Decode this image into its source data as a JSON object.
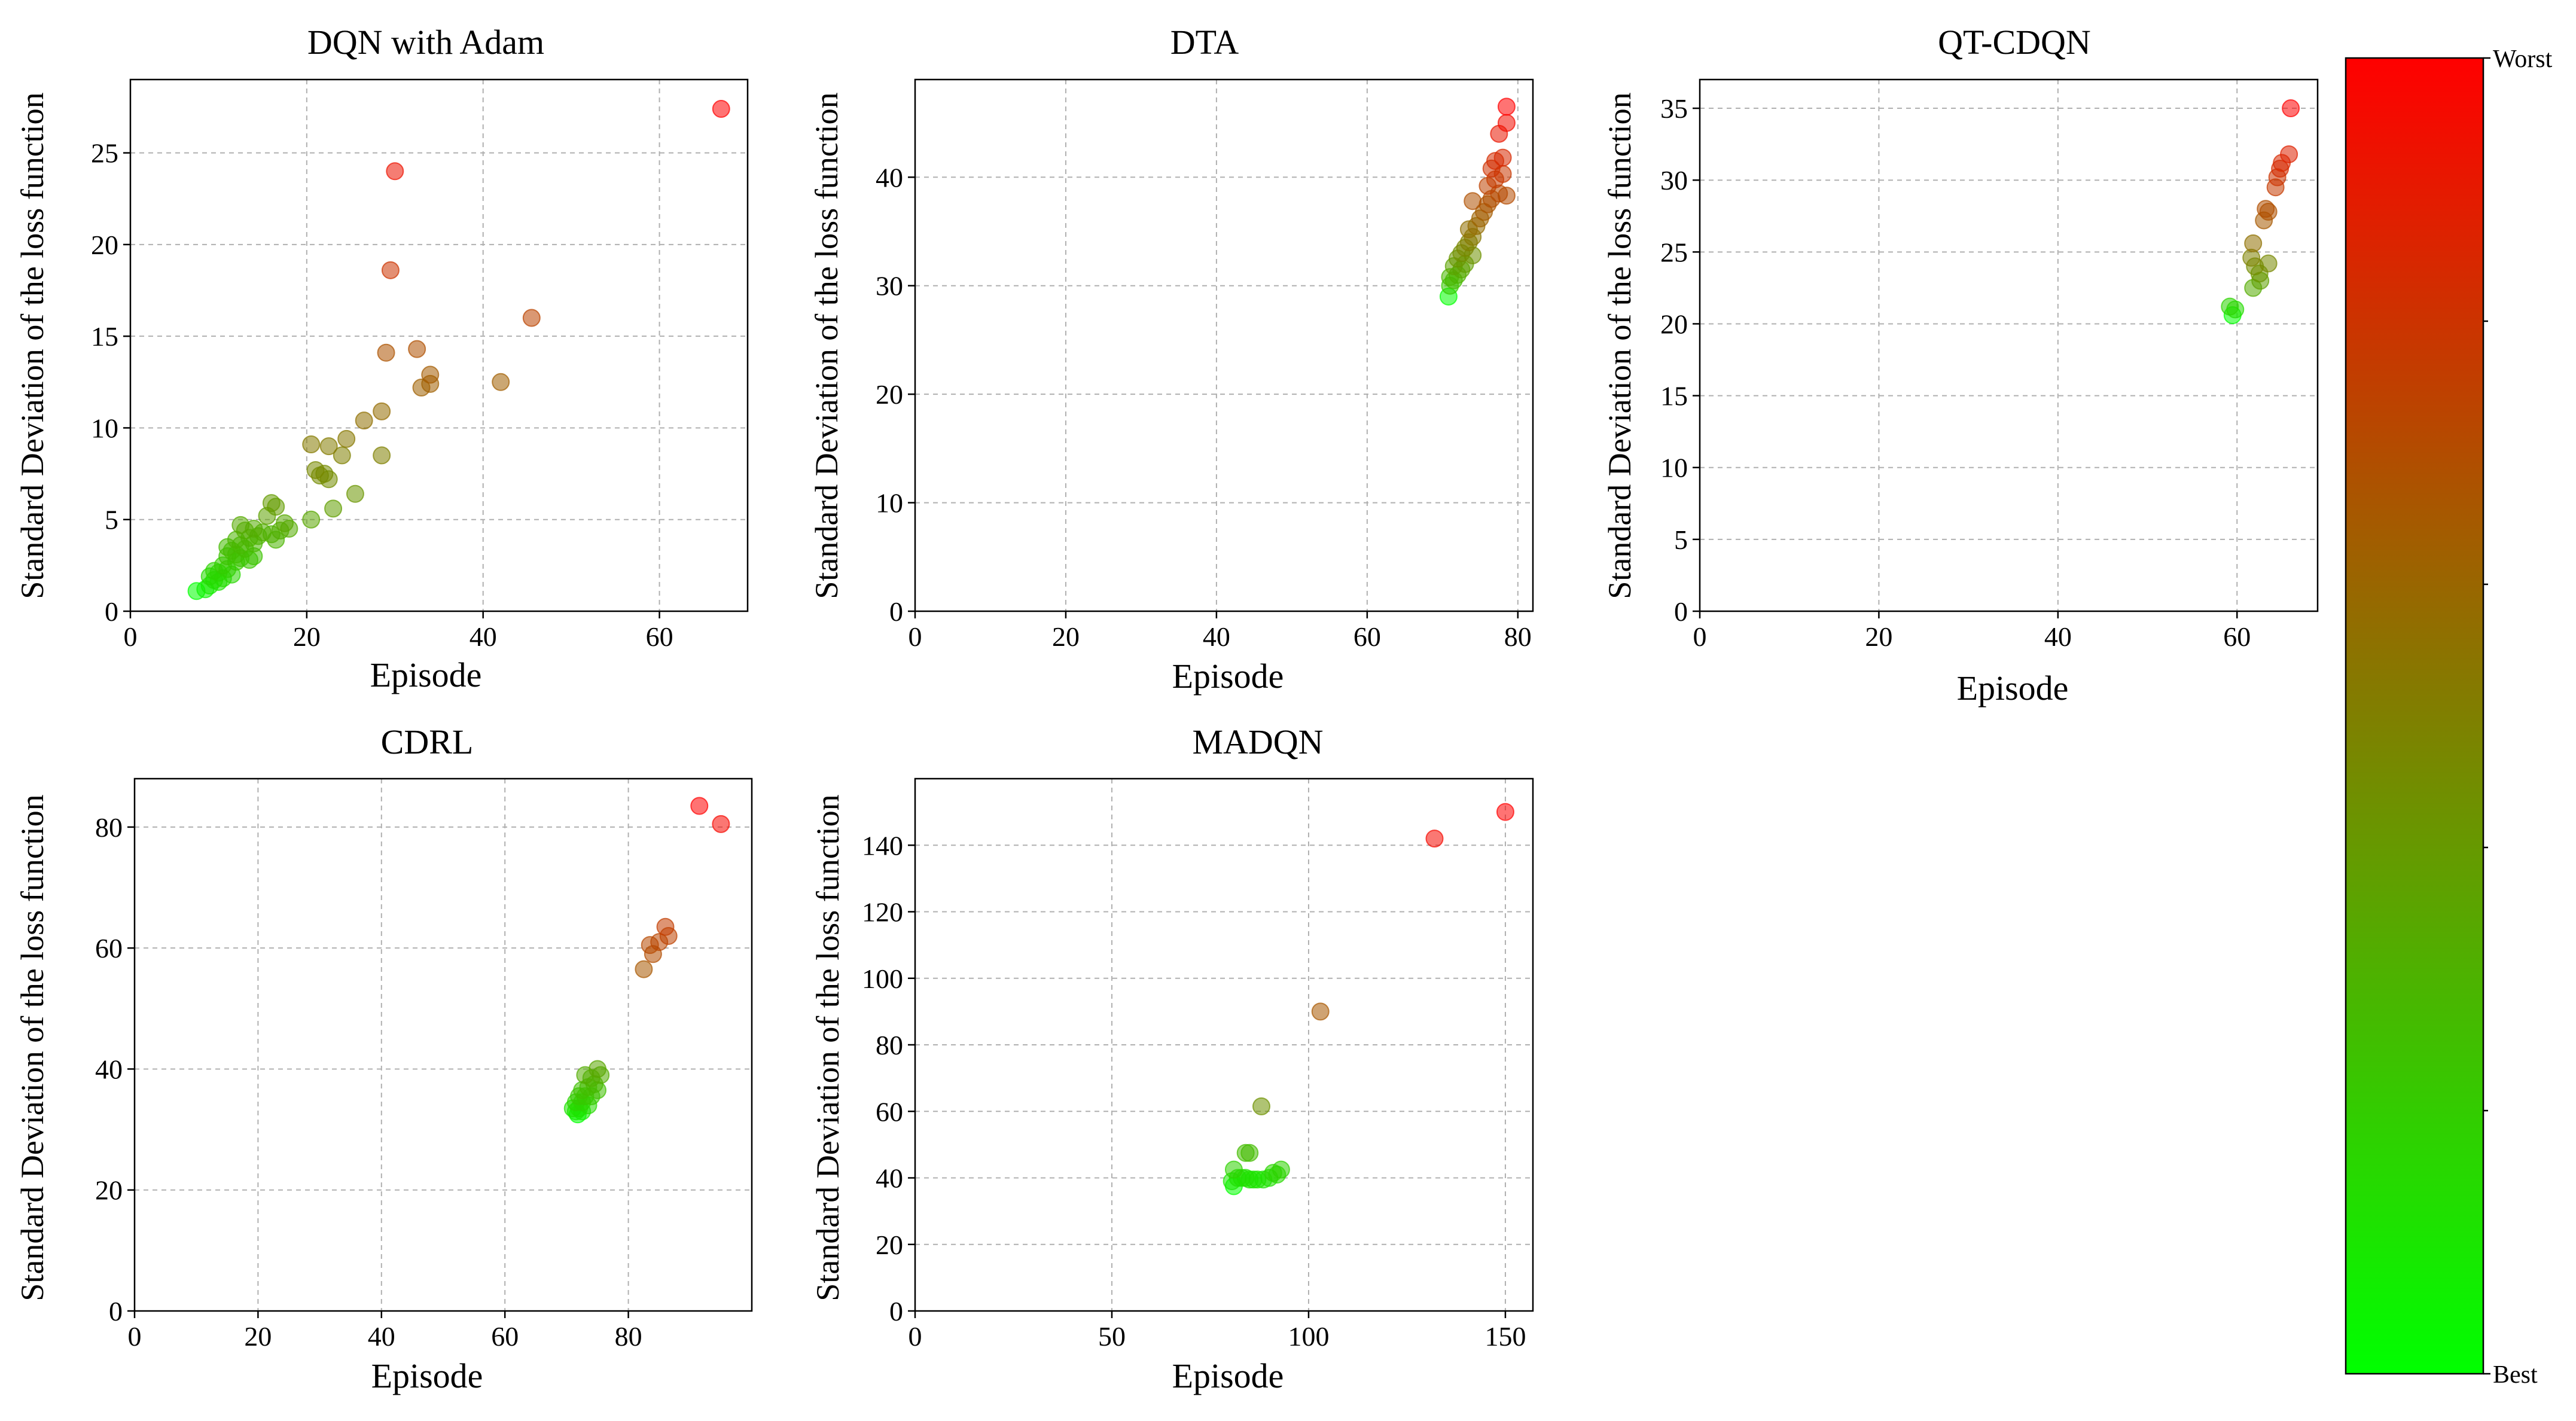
{
  "chart_data": [
    {
      "type": "scatter",
      "title": "DQN with Adam",
      "xlabel": "Episode",
      "ylabel": "Standard Deviation of the loss function",
      "xlim": [
        0,
        70
      ],
      "ylim": [
        0,
        29
      ],
      "xticks": [
        0,
        20,
        40,
        60
      ],
      "yticks": [
        0,
        5,
        10,
        15,
        20,
        25
      ],
      "grid": true,
      "points": [
        {
          "x": 67,
          "y": 27.4
        },
        {
          "x": 30,
          "y": 24.0
        },
        {
          "x": 29.5,
          "y": 18.6
        },
        {
          "x": 45.5,
          "y": 16.0
        },
        {
          "x": 32.5,
          "y": 14.3
        },
        {
          "x": 29,
          "y": 14.1
        },
        {
          "x": 34,
          "y": 12.9
        },
        {
          "x": 42,
          "y": 12.5
        },
        {
          "x": 34,
          "y": 12.4
        },
        {
          "x": 33,
          "y": 12.2
        },
        {
          "x": 28.5,
          "y": 10.9
        },
        {
          "x": 26.5,
          "y": 10.4
        },
        {
          "x": 24.5,
          "y": 9.4
        },
        {
          "x": 20.5,
          "y": 9.1
        },
        {
          "x": 22.5,
          "y": 9.0
        },
        {
          "x": 24,
          "y": 8.5
        },
        {
          "x": 28.5,
          "y": 8.5
        },
        {
          "x": 21,
          "y": 7.7
        },
        {
          "x": 22,
          "y": 7.5
        },
        {
          "x": 21.5,
          "y": 7.4
        },
        {
          "x": 22.5,
          "y": 7.2
        },
        {
          "x": 25.5,
          "y": 6.4
        },
        {
          "x": 16,
          "y": 5.9
        },
        {
          "x": 16.5,
          "y": 5.7
        },
        {
          "x": 23,
          "y": 5.6
        },
        {
          "x": 15.5,
          "y": 5.2
        },
        {
          "x": 20.5,
          "y": 5.0
        },
        {
          "x": 17.5,
          "y": 4.8
        },
        {
          "x": 12.5,
          "y": 4.7
        },
        {
          "x": 18,
          "y": 4.5
        },
        {
          "x": 14,
          "y": 4.5
        },
        {
          "x": 17,
          "y": 4.4
        },
        {
          "x": 13,
          "y": 4.4
        },
        {
          "x": 15,
          "y": 4.3
        },
        {
          "x": 16,
          "y": 4.2
        },
        {
          "x": 14.5,
          "y": 4.1
        },
        {
          "x": 13.5,
          "y": 4.0
        },
        {
          "x": 12,
          "y": 3.9
        },
        {
          "x": 16.5,
          "y": 3.9
        },
        {
          "x": 14,
          "y": 3.7
        },
        {
          "x": 12.5,
          "y": 3.6
        },
        {
          "x": 11,
          "y": 3.5
        },
        {
          "x": 13,
          "y": 3.4
        },
        {
          "x": 11.5,
          "y": 3.3
        },
        {
          "x": 12,
          "y": 3.1
        },
        {
          "x": 14,
          "y": 3.0
        },
        {
          "x": 11,
          "y": 3.0
        },
        {
          "x": 12.5,
          "y": 2.9
        },
        {
          "x": 13.5,
          "y": 2.8
        },
        {
          "x": 12,
          "y": 2.7
        },
        {
          "x": 10.5,
          "y": 2.5
        },
        {
          "x": 11,
          "y": 2.3
        },
        {
          "x": 9.5,
          "y": 2.2
        },
        {
          "x": 10,
          "y": 2.1
        },
        {
          "x": 11.5,
          "y": 2.0
        },
        {
          "x": 9,
          "y": 1.9
        },
        {
          "x": 10.5,
          "y": 1.8
        },
        {
          "x": 9.5,
          "y": 1.7
        },
        {
          "x": 10,
          "y": 1.6
        },
        {
          "x": 9,
          "y": 1.4
        },
        {
          "x": 8.5,
          "y": 1.2
        },
        {
          "x": 7.5,
          "y": 1.1
        }
      ]
    },
    {
      "type": "scatter",
      "title": "DTA",
      "xlabel": "Episode",
      "ylabel": "Standard Deviation of the loss function",
      "xlim": [
        0,
        82
      ],
      "ylim": [
        0,
        49
      ],
      "xticks": [
        0,
        20,
        40,
        60,
        80
      ],
      "yticks": [
        0,
        10,
        20,
        30,
        40
      ],
      "grid": true,
      "points": [
        {
          "x": 78.5,
          "y": 46.5
        },
        {
          "x": 78.5,
          "y": 45.0
        },
        {
          "x": 77.5,
          "y": 44.0
        },
        {
          "x": 78,
          "y": 41.8
        },
        {
          "x": 77,
          "y": 41.5
        },
        {
          "x": 76.5,
          "y": 40.8
        },
        {
          "x": 78,
          "y": 40.3
        },
        {
          "x": 77,
          "y": 39.8
        },
        {
          "x": 76,
          "y": 39.2
        },
        {
          "x": 77.5,
          "y": 38.5
        },
        {
          "x": 78.5,
          "y": 38.3
        },
        {
          "x": 76.5,
          "y": 38.0
        },
        {
          "x": 76,
          "y": 37.5
        },
        {
          "x": 74,
          "y": 37.8
        },
        {
          "x": 75.5,
          "y": 36.8
        },
        {
          "x": 75,
          "y": 36.2
        },
        {
          "x": 74.5,
          "y": 35.5
        },
        {
          "x": 73.5,
          "y": 35.2
        },
        {
          "x": 74,
          "y": 34.5
        },
        {
          "x": 73.5,
          "y": 34.0
        },
        {
          "x": 73,
          "y": 33.5
        },
        {
          "x": 74,
          "y": 32.8
        },
        {
          "x": 72.5,
          "y": 33.0
        },
        {
          "x": 72,
          "y": 32.5
        },
        {
          "x": 73,
          "y": 32.0
        },
        {
          "x": 72.5,
          "y": 31.5
        },
        {
          "x": 71.5,
          "y": 31.8
        },
        {
          "x": 72,
          "y": 31.0
        },
        {
          "x": 71.5,
          "y": 30.5
        },
        {
          "x": 71,
          "y": 30.8
        },
        {
          "x": 71,
          "y": 30.0
        },
        {
          "x": 70.8,
          "y": 29.0
        }
      ]
    },
    {
      "type": "scatter",
      "title": "QT-CDQN",
      "xlabel": "Episode",
      "ylabel": "Standard Deviation of the loss function",
      "xlim": [
        0,
        69
      ],
      "ylim": [
        0,
        37
      ],
      "xticks": [
        0,
        20,
        40,
        60
      ],
      "yticks": [
        0,
        5,
        10,
        15,
        20,
        25,
        30,
        35
      ],
      "grid": true,
      "points": [
        {
          "x": 66,
          "y": 35.0
        },
        {
          "x": 65.8,
          "y": 31.8
        },
        {
          "x": 65,
          "y": 31.2
        },
        {
          "x": 64.8,
          "y": 30.8
        },
        {
          "x": 64.5,
          "y": 30.2
        },
        {
          "x": 64.3,
          "y": 29.5
        },
        {
          "x": 63.2,
          "y": 28.0
        },
        {
          "x": 63.5,
          "y": 27.8
        },
        {
          "x": 63,
          "y": 27.2
        },
        {
          "x": 61.8,
          "y": 25.6
        },
        {
          "x": 61.6,
          "y": 24.6
        },
        {
          "x": 63.5,
          "y": 24.2
        },
        {
          "x": 62,
          "y": 24.0
        },
        {
          "x": 62.5,
          "y": 23.5
        },
        {
          "x": 62.6,
          "y": 23.0
        },
        {
          "x": 61.8,
          "y": 22.5
        },
        {
          "x": 59.2,
          "y": 21.2
        },
        {
          "x": 59.8,
          "y": 21.0
        },
        {
          "x": 59.5,
          "y": 20.6
        }
      ]
    },
    {
      "type": "scatter",
      "title": "CDRL",
      "xlabel": "Episode",
      "ylabel": "Standard Deviation of the loss function",
      "xlim": [
        0,
        100
      ],
      "ylim": [
        0,
        88
      ],
      "xticks": [
        0,
        20,
        40,
        60,
        80
      ],
      "yticks": [
        0,
        20,
        40,
        60,
        80
      ],
      "grid": true,
      "points": [
        {
          "x": 91.5,
          "y": 83.5
        },
        {
          "x": 95,
          "y": 80.5
        },
        {
          "x": 86,
          "y": 63.5
        },
        {
          "x": 86.5,
          "y": 62.0
        },
        {
          "x": 85,
          "y": 61.0
        },
        {
          "x": 83.5,
          "y": 60.5
        },
        {
          "x": 84,
          "y": 59.0
        },
        {
          "x": 82.5,
          "y": 56.5
        },
        {
          "x": 75,
          "y": 40.0
        },
        {
          "x": 75.5,
          "y": 39.0
        },
        {
          "x": 73,
          "y": 39.0
        },
        {
          "x": 74,
          "y": 38.5
        },
        {
          "x": 74.5,
          "y": 37.5
        },
        {
          "x": 75,
          "y": 36.5
        },
        {
          "x": 73.5,
          "y": 37.0
        },
        {
          "x": 72.5,
          "y": 36.5
        },
        {
          "x": 73,
          "y": 35.5
        },
        {
          "x": 74,
          "y": 35.5
        },
        {
          "x": 72,
          "y": 35.5
        },
        {
          "x": 72.5,
          "y": 34.5
        },
        {
          "x": 73.5,
          "y": 34.0
        },
        {
          "x": 71.5,
          "y": 34.5
        },
        {
          "x": 72,
          "y": 33.5
        },
        {
          "x": 71.5,
          "y": 33.0
        },
        {
          "x": 71,
          "y": 33.5
        },
        {
          "x": 72.5,
          "y": 33.0
        },
        {
          "x": 71.8,
          "y": 32.5
        }
      ]
    },
    {
      "type": "scatter",
      "title": "MADQN",
      "xlabel": "Episode",
      "ylabel": "Standard Deviation of the loss function",
      "xlim": [
        0,
        157
      ],
      "ylim": [
        0,
        160
      ],
      "xticks": [
        0,
        50,
        100,
        150
      ],
      "yticks": [
        0,
        20,
        40,
        60,
        80,
        100,
        120,
        140
      ],
      "grid": true,
      "points": [
        {
          "x": 150,
          "y": 150.0
        },
        {
          "x": 132,
          "y": 142.0
        },
        {
          "x": 103,
          "y": 90.0
        },
        {
          "x": 88,
          "y": 61.5
        },
        {
          "x": 84,
          "y": 47.5
        },
        {
          "x": 85,
          "y": 47.5
        },
        {
          "x": 93,
          "y": 42.5
        },
        {
          "x": 91,
          "y": 41.5
        },
        {
          "x": 92,
          "y": 41.0
        },
        {
          "x": 90,
          "y": 40.0
        },
        {
          "x": 88.5,
          "y": 39.5
        },
        {
          "x": 87,
          "y": 39.5
        },
        {
          "x": 86,
          "y": 39.5
        },
        {
          "x": 85,
          "y": 39.5
        },
        {
          "x": 84,
          "y": 40.0
        },
        {
          "x": 83,
          "y": 40.0
        },
        {
          "x": 82,
          "y": 40.0
        },
        {
          "x": 81,
          "y": 42.5
        },
        {
          "x": 80.5,
          "y": 39.0
        },
        {
          "x": 81,
          "y": 37.5
        }
      ]
    }
  ],
  "colorbar": {
    "top_label": "Worst",
    "bottom_label": "Best",
    "top_color": "#ff0000",
    "bottom_color": "#00ff00"
  }
}
